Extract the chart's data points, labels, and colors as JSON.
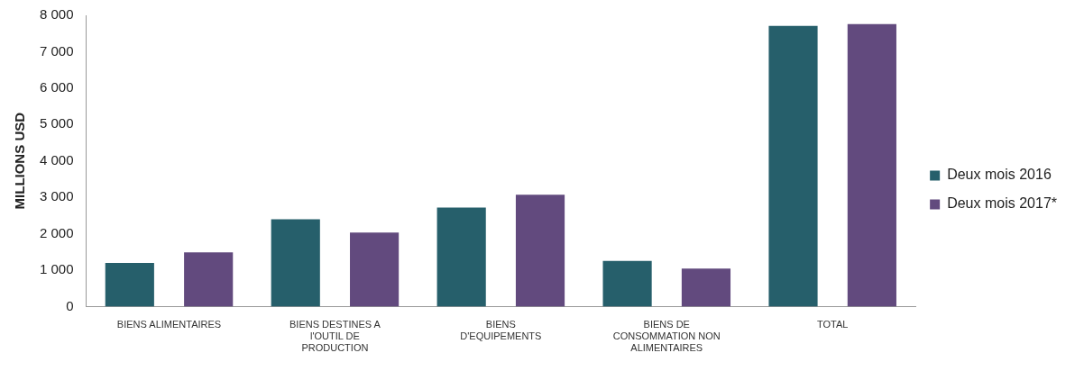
{
  "chart_data": {
    "type": "bar",
    "ylabel": "MILLIONS USD",
    "categories": [
      "BIENS ALIMENTAIRES",
      "BIENS DESTINES A l'OUTIL DE PRODUCTION",
      "BIENS D'EQUIPEMENTS",
      "BIENS DE CONSOMMATION NON ALIMENTAIRES",
      "TOTAL"
    ],
    "series": [
      {
        "name": "Deux mois 2016",
        "color": "#265f6b",
        "values": [
          1200,
          2400,
          2720,
          1250,
          7710
        ]
      },
      {
        "name": "Deux mois 2017*",
        "color": "#624a7e",
        "values": [
          1490,
          2030,
          3070,
          1040,
          7760
        ]
      }
    ],
    "ylim": [
      0,
      8000
    ],
    "yticks": [
      0,
      {
        "value": 1000,
        "label": "1 000"
      },
      {
        "value": 2000,
        "label": "2 000"
      },
      {
        "value": 3000,
        "label": "3 000"
      },
      {
        "value": 4000,
        "label": "4 000"
      },
      {
        "value": 5000,
        "label": "5 000"
      },
      {
        "value": 6000,
        "label": "6 000"
      },
      {
        "value": 7000,
        "label": "7 000"
      },
      {
        "value": 8000,
        "label": "8 000"
      }
    ],
    "grid": false,
    "legend": "right"
  }
}
